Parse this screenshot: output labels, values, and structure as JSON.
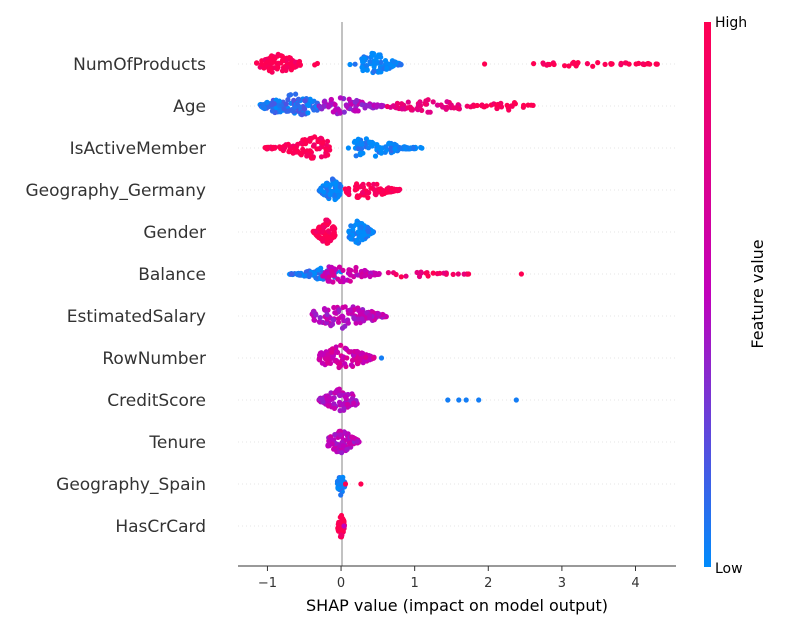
{
  "chart_data": {
    "type": "scatter",
    "subtype": "shap-beeswarm",
    "xlabel": "SHAP value (impact on model output)",
    "xlim": [
      -1.4,
      4.55
    ],
    "xticks": [
      -1,
      0,
      1,
      2,
      3,
      4
    ],
    "xtick_labels": [
      "−1",
      "0",
      "1",
      "2",
      "3",
      "4"
    ],
    "colorbar": {
      "title": "Feature value",
      "high_label": "High",
      "low_label": "Low",
      "low_color": "#008bfb",
      "mid_color": "#c100bb",
      "high_color": "#ff0052"
    },
    "grid": false,
    "features": [
      {
        "name": "NumOfProducts",
        "clusters": [
          {
            "lo": -1.15,
            "hi": -0.55,
            "center": -0.85,
            "spread": 0.85,
            "n": 90,
            "value": 1.0
          },
          {
            "lo": 0.28,
            "hi": 0.82,
            "center": 0.45,
            "spread": 1.0,
            "n": 90,
            "value": 0.0
          },
          {
            "lo": -0.4,
            "hi": -0.3,
            "center": -0.35,
            "spread": 0.1,
            "n": 2,
            "value": 1.0
          },
          {
            "lo": 0.1,
            "hi": 0.2,
            "center": 0.15,
            "spread": 0.1,
            "n": 2,
            "value": 0.0
          },
          {
            "lo": 2.6,
            "hi": 4.3,
            "center": 3.3,
            "spread": 0.2,
            "n": 40,
            "value": 1.0
          }
        ],
        "outliers": [
          {
            "x": 1.95,
            "value": 1.0
          },
          {
            "x": 4.28,
            "value": 1.0
          }
        ]
      },
      {
        "name": "Age",
        "clusters": [
          {
            "lo": -1.1,
            "hi": -0.3,
            "center": -0.65,
            "spread": 1.0,
            "n": 110,
            "value": 0.1
          },
          {
            "lo": -0.3,
            "hi": 0.6,
            "center": 0.0,
            "spread": 0.7,
            "n": 90,
            "value": 0.45
          },
          {
            "lo": 0.6,
            "hi": 1.8,
            "center": 1.2,
            "spread": 0.5,
            "n": 60,
            "value": 0.8
          },
          {
            "lo": 1.8,
            "hi": 2.65,
            "center": 2.3,
            "spread": 0.35,
            "n": 30,
            "value": 1.0
          }
        ],
        "outliers": []
      },
      {
        "name": "IsActiveMember",
        "clusters": [
          {
            "lo": -1.05,
            "hi": -0.15,
            "center": -0.35,
            "spread": 0.9,
            "n": 100,
            "value": 1.0
          },
          {
            "lo": 0.18,
            "hi": 1.1,
            "center": 0.35,
            "spread": 0.85,
            "n": 100,
            "value": 0.0
          }
        ],
        "outliers": [
          {
            "x": 0.1,
            "value": 0.0
          }
        ]
      },
      {
        "name": "Geography_Germany",
        "clusters": [
          {
            "lo": -0.3,
            "hi": 0.0,
            "center": -0.12,
            "spread": 0.95,
            "n": 80,
            "value": 0.0
          },
          {
            "lo": 0.0,
            "hi": 0.8,
            "center": 0.3,
            "spread": 0.7,
            "n": 80,
            "value": 1.0
          }
        ],
        "outliers": []
      },
      {
        "name": "Gender",
        "clusters": [
          {
            "lo": -0.38,
            "hi": -0.08,
            "center": -0.2,
            "spread": 1.0,
            "n": 70,
            "value": 1.0
          },
          {
            "lo": 0.1,
            "hi": 0.45,
            "center": 0.22,
            "spread": 1.0,
            "n": 70,
            "value": 0.0
          }
        ],
        "outliers": []
      },
      {
        "name": "Balance",
        "clusters": [
          {
            "lo": -0.7,
            "hi": 0.0,
            "center": -0.2,
            "spread": 0.55,
            "n": 60,
            "value": 0.05
          },
          {
            "lo": -0.25,
            "hi": 0.55,
            "center": 0.0,
            "spread": 0.9,
            "n": 70,
            "value": 0.55
          },
          {
            "lo": 0.55,
            "hi": 1.75,
            "center": 0.9,
            "spread": 0.25,
            "n": 25,
            "value": 0.9
          }
        ],
        "outliers": [
          {
            "x": 2.45,
            "value": 1.0
          }
        ]
      },
      {
        "name": "EstimatedSalary",
        "clusters": [
          {
            "lo": -0.42,
            "hi": 0.62,
            "center": 0.0,
            "spread": 1.0,
            "n": 110,
            "value": 0.5
          }
        ],
        "outliers": []
      },
      {
        "name": "RowNumber",
        "clusters": [
          {
            "lo": -0.3,
            "hi": 0.45,
            "center": 0.0,
            "spread": 1.0,
            "n": 110,
            "value": 0.6
          }
        ],
        "outliers": [
          {
            "x": 0.55,
            "value": 0.05
          }
        ]
      },
      {
        "name": "CreditScore",
        "clusters": [
          {
            "lo": -0.3,
            "hi": 0.22,
            "center": 0.0,
            "spread": 1.0,
            "n": 90,
            "value": 0.5
          }
        ],
        "outliers": [
          {
            "x": 1.45,
            "value": 0.05
          },
          {
            "x": 1.6,
            "value": 0.05
          },
          {
            "x": 1.7,
            "value": 0.05
          },
          {
            "x": 1.87,
            "value": 0.05
          },
          {
            "x": 2.38,
            "value": 0.05
          }
        ]
      },
      {
        "name": "Tenure",
        "clusters": [
          {
            "lo": -0.18,
            "hi": 0.25,
            "center": 0.0,
            "spread": 1.0,
            "n": 90,
            "value": 0.5
          }
        ],
        "outliers": []
      },
      {
        "name": "Geography_Spain",
        "clusters": [
          {
            "lo": -0.05,
            "hi": 0.05,
            "center": 0.0,
            "spread": 1.0,
            "n": 40,
            "value": 0.0
          }
        ],
        "outliers": [
          {
            "x": 0.27,
            "value": 1.0
          },
          {
            "x": 0.06,
            "value": 1.0
          }
        ]
      },
      {
        "name": "HasCrCard",
        "clusters": [
          {
            "lo": -0.05,
            "hi": 0.05,
            "center": 0.0,
            "spread": 1.0,
            "n": 40,
            "value": 1.0
          }
        ],
        "outliers": [
          {
            "x": 0.04,
            "value": 0.5
          }
        ]
      }
    ]
  }
}
